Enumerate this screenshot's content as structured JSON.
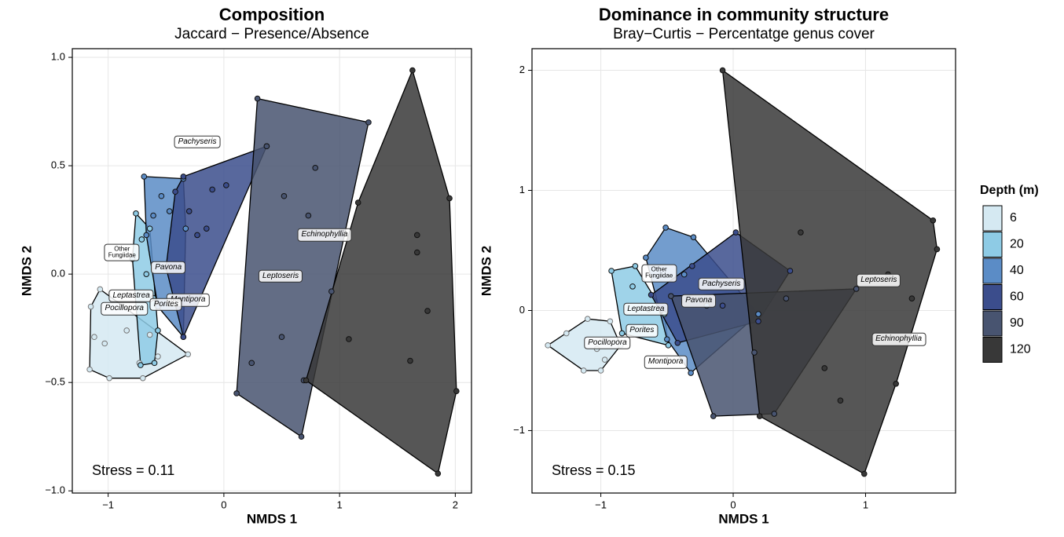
{
  "chart_data": [
    {
      "type": "scatter",
      "title": "Composition",
      "subtitle": "Jaccard − Presence/Absence",
      "xlabel": "NMDS 1",
      "ylabel": "NMDS 2",
      "annotation": "Stress = 0.11",
      "xlim": [
        -1.31,
        2.14
      ],
      "ylim": [
        -1.01,
        1.04
      ],
      "xticks": [
        {
          "value": -1,
          "label": "−1"
        },
        0,
        1,
        2
      ],
      "yticks": [
        {
          "value": -1,
          "label": "−1.0"
        },
        {
          "value": -0.5,
          "label": "−0.5"
        },
        {
          "value": 0,
          "label": "0.0"
        },
        0.5,
        {
          "value": 1,
          "label": "1.0"
        }
      ],
      "grid": true,
      "series": [
        {
          "color": "#d5e9f2",
          "x": [
            -1.16,
            -0.99,
            -0.7,
            -0.31,
            -1.07,
            -1.15,
            -1.12,
            -1.03,
            -0.84,
            -0.73,
            -0.57,
            -0.64
          ],
          "y": [
            -0.44,
            -0.48,
            -0.48,
            -0.37,
            -0.07,
            -0.15,
            -0.29,
            -0.32,
            -0.26,
            -0.41,
            -0.38,
            -0.28
          ]
        },
        {
          "color": "#8ecbe5",
          "x": [
            -0.76,
            -0.71,
            -0.79,
            -0.72,
            -0.6,
            -0.57,
            -0.61,
            -0.67,
            -0.64
          ],
          "y": [
            0.28,
            0.16,
            0.07,
            -0.42,
            -0.41,
            -0.26,
            -0.11,
            0.0,
            0.21
          ]
        },
        {
          "color": "#5b8cc6",
          "x": [
            -0.69,
            -0.35,
            -0.33,
            -0.35,
            -0.57,
            -0.67,
            -0.54,
            -0.47,
            -0.61
          ],
          "y": [
            0.45,
            0.44,
            0.21,
            -0.29,
            -0.15,
            0.18,
            0.36,
            0.29,
            0.27
          ]
        },
        {
          "color": "#3b4d8c",
          "x": [
            -0.35,
            0.02,
            0.37,
            -0.5,
            -0.35,
            -0.23,
            -0.3,
            -0.42,
            -0.15,
            -0.1
          ],
          "y": [
            0.45,
            0.41,
            0.59,
            0.03,
            -0.29,
            0.18,
            0.29,
            0.38,
            0.21,
            0.39
          ]
        },
        {
          "color": "#485470",
          "x": [
            0.29,
            1.25,
            0.67,
            0.11,
            0.37,
            0.52,
            0.79,
            0.73,
            0.5,
            0.24,
            0.69,
            0.93
          ],
          "y": [
            0.81,
            0.7,
            -0.75,
            -0.55,
            0.59,
            0.36,
            0.49,
            0.27,
            -0.29,
            -0.41,
            -0.49,
            -0.08
          ]
        },
        {
          "color": "#383838",
          "x": [
            1.63,
            1.95,
            2.01,
            1.85,
            0.71,
            1.16,
            1.67,
            1.67,
            1.76,
            1.08,
            1.61
          ],
          "y": [
            0.94,
            0.35,
            -0.54,
            -0.92,
            -0.49,
            0.33,
            0.18,
            0.1,
            -0.17,
            -0.3,
            -0.4
          ]
        }
      ],
      "labels": [
        {
          "text": "Pachyseris",
          "x": -0.23,
          "y": 0.61
        },
        {
          "text": "Echinophyllia",
          "x": 0.87,
          "y": 0.18
        },
        {
          "text": "Leptoseris",
          "x": 0.49,
          "y": -0.01
        },
        {
          "text": "Other\nFungiidae",
          "x": -0.88,
          "y": 0.1
        },
        {
          "text": "Pavona",
          "x": -0.48,
          "y": 0.03
        },
        {
          "text": "Montipora",
          "x": -0.31,
          "y": -0.12
        },
        {
          "text": "Leptastrea",
          "x": -0.8,
          "y": -0.1
        },
        {
          "text": "Porites",
          "x": -0.5,
          "y": -0.14
        },
        {
          "text": "Pocillopora",
          "x": -0.86,
          "y": -0.16
        }
      ]
    },
    {
      "type": "scatter",
      "title": "Dominance in community structure",
      "subtitle": "Bray−Curtis − Percentatge genus cover",
      "xlabel": "NMDS 1",
      "ylabel": "NMDS 2",
      "annotation": "Stress = 0.15",
      "xlim": [
        -1.52,
        1.68
      ],
      "ylim": [
        -1.52,
        2.18
      ],
      "xticks": [
        {
          "value": -1,
          "label": "−1"
        },
        0,
        1
      ],
      "yticks": [
        {
          "value": -1,
          "label": "−1"
        },
        0,
        1,
        2
      ],
      "grid": true,
      "series": [
        {
          "color": "#d5e9f2",
          "x": [
            -1.4,
            -1.13,
            -1.0,
            -0.85,
            -0.93,
            -1.1,
            -1.26,
            -0.97,
            -1.03
          ],
          "y": [
            -0.29,
            -0.5,
            -0.5,
            -0.29,
            -0.09,
            -0.07,
            -0.19,
            -0.41,
            -0.32
          ]
        },
        {
          "color": "#8ecbe5",
          "x": [
            -0.92,
            -0.74,
            -0.52,
            -0.49,
            -0.84,
            -0.76,
            -0.64
          ],
          "y": [
            0.33,
            0.37,
            -0.03,
            -0.29,
            -0.19,
            0.2,
            0.01
          ]
        },
        {
          "color": "#5b8cc6",
          "x": [
            -0.51,
            -0.3,
            0.19,
            -0.32,
            -0.5,
            -0.66,
            -0.37,
            -0.2
          ],
          "y": [
            0.69,
            0.61,
            -0.03,
            -0.52,
            -0.24,
            0.44,
            0.3,
            0.04
          ]
        },
        {
          "color": "#3b4d8c",
          "x": [
            0.02,
            0.43,
            0.19,
            -0.42,
            -0.62,
            -0.31,
            -0.08
          ],
          "y": [
            0.65,
            0.33,
            -0.09,
            -0.27,
            0.13,
            0.37,
            0.04
          ]
        },
        {
          "color": "#485470",
          "x": [
            -0.15,
            0.31,
            0.93,
            -0.47,
            0.4,
            0.16
          ],
          "y": [
            -0.88,
            -0.86,
            0.18,
            0.12,
            0.1,
            -0.35
          ]
        },
        {
          "color": "#383838",
          "x": [
            -0.08,
            1.51,
            1.54,
            0.99,
            0.2,
            0.51,
            1.35,
            1.23,
            0.69,
            1.17,
            0.81
          ],
          "y": [
            2.0,
            0.75,
            0.51,
            -1.36,
            -0.88,
            0.65,
            0.1,
            -0.61,
            -0.48,
            0.3,
            -0.75
          ]
        }
      ],
      "labels": [
        {
          "text": "Pachyseris",
          "x": -0.09,
          "y": 0.22
        },
        {
          "text": "Leptoseris",
          "x": 1.1,
          "y": 0.25
        },
        {
          "text": "Echinophyllia",
          "x": 1.25,
          "y": -0.24
        },
        {
          "text": "Other\nFungiidae",
          "x": -0.56,
          "y": 0.31
        },
        {
          "text": "Pavona",
          "x": -0.26,
          "y": 0.08
        },
        {
          "text": "Leptastrea",
          "x": -0.66,
          "y": 0.01
        },
        {
          "text": "Porites",
          "x": -0.69,
          "y": -0.17
        },
        {
          "text": "Pocillopora",
          "x": -0.95,
          "y": -0.27
        },
        {
          "text": "Montipora",
          "x": -0.51,
          "y": -0.43
        }
      ]
    }
  ],
  "legend": {
    "title": "Depth (m)",
    "items": [
      {
        "name": "6",
        "color": "#d5e9f2"
      },
      {
        "name": "20",
        "color": "#8ecbe5"
      },
      {
        "name": "40",
        "color": "#5b8cc6"
      },
      {
        "name": "60",
        "color": "#3b4d8c"
      },
      {
        "name": "90",
        "color": "#485470"
      },
      {
        "name": "120",
        "color": "#383838"
      }
    ]
  }
}
